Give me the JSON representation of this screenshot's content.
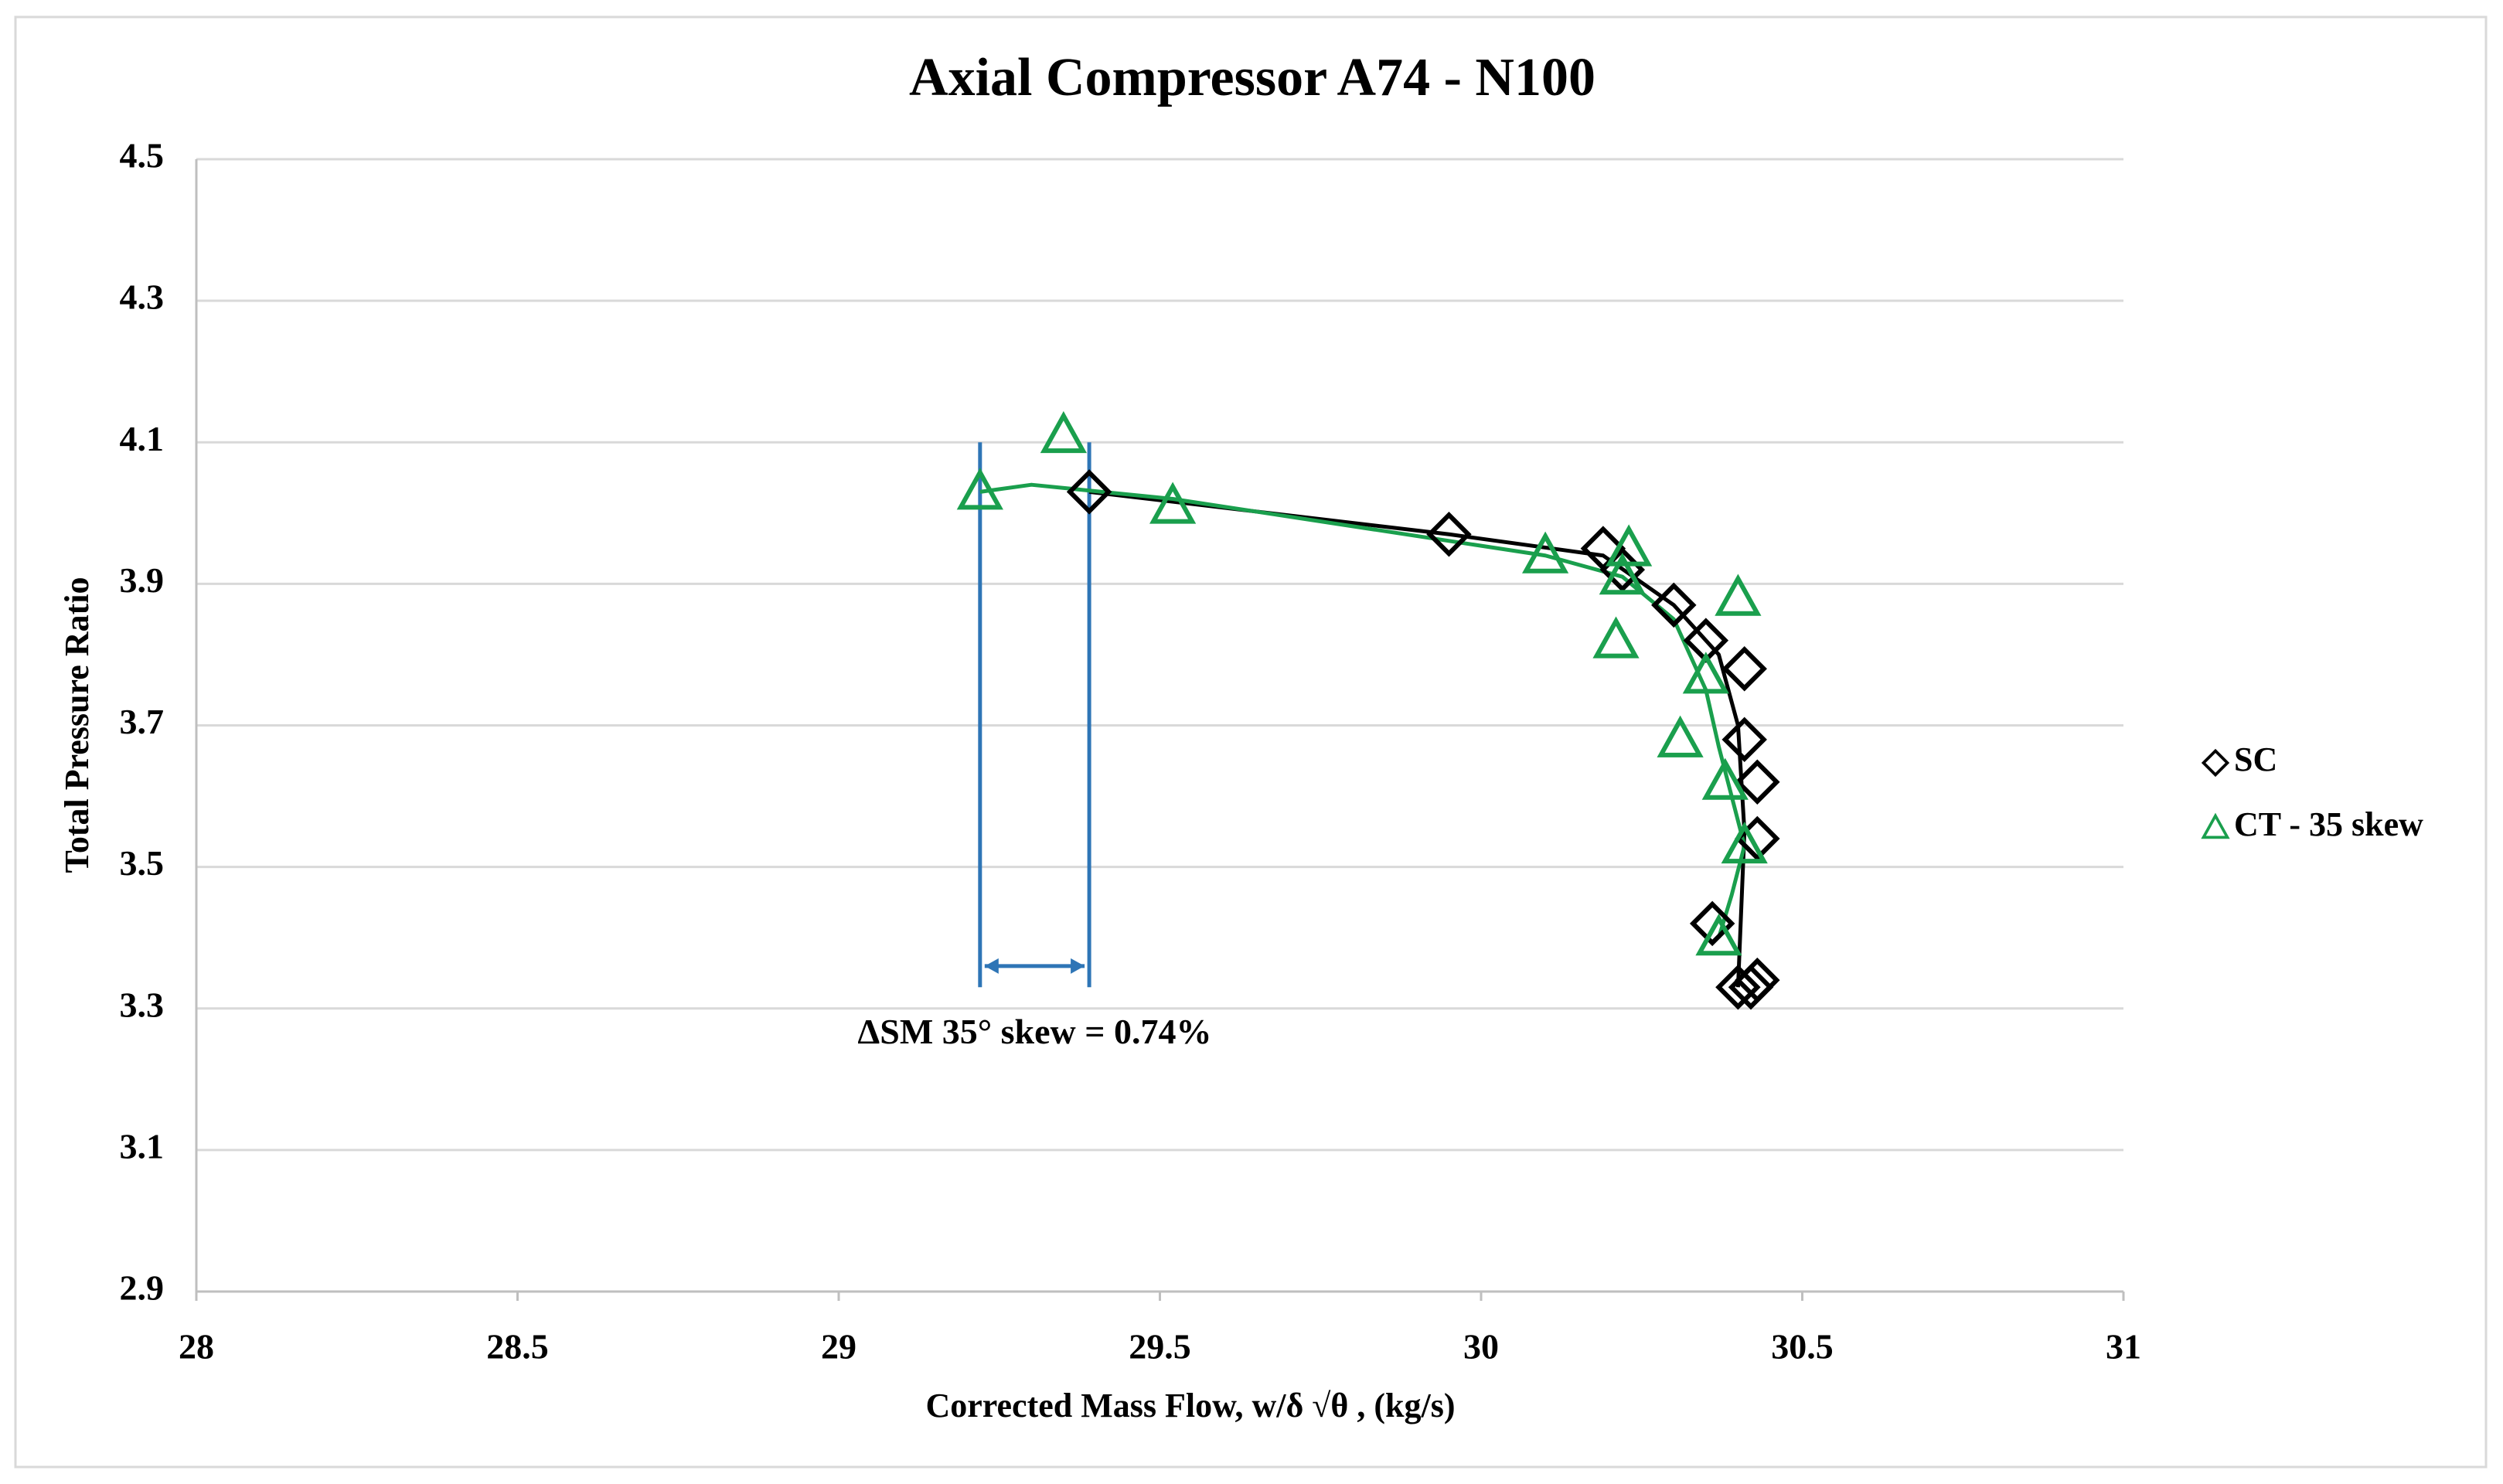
{
  "chart_data": {
    "type": "scatter",
    "title": "Axial Compressor A74 - N100",
    "x_label": "Corrected Mass Flow, w/δ √θ , (kg/s)",
    "y_label": "Total Pressure Ratio",
    "xlim": [
      28,
      31
    ],
    "xticks": [
      28,
      28.5,
      29,
      29.5,
      30,
      30.5,
      31
    ],
    "ylim": [
      2.9,
      4.5
    ],
    "yticks": [
      2.9,
      3.1,
      3.3,
      3.5,
      3.7,
      3.9,
      4.1,
      4.3,
      4.5
    ],
    "grid": true,
    "legend": "right",
    "series": [
      {
        "name": "SC",
        "color": "#000000",
        "marker": "diamond",
        "x": [
          29.39,
          29.95,
          30.19,
          30.22,
          30.3,
          30.35,
          30.41,
          30.41,
          30.43,
          30.43,
          30.36,
          30.4,
          30.42,
          30.43
        ],
        "values": [
          4.03,
          3.97,
          3.95,
          3.92,
          3.87,
          3.82,
          3.78,
          3.68,
          3.62,
          3.54,
          3.42,
          3.33,
          3.33,
          3.34
        ],
        "fit_x": [
          29.39,
          29.95,
          30.19,
          30.3,
          30.37,
          30.4,
          30.41,
          30.4
        ],
        "fit_y": [
          4.03,
          3.97,
          3.94,
          3.87,
          3.8,
          3.7,
          3.55,
          3.33
        ]
      },
      {
        "name": "CT - 35 skew",
        "color": "#1a9f4d",
        "marker": "triangle",
        "x": [
          29.22,
          29.35,
          29.52,
          30.1,
          30.23,
          30.22,
          30.21,
          30.4,
          30.35,
          30.31,
          30.38,
          30.41,
          30.37
        ],
        "values": [
          4.03,
          4.11,
          4.01,
          3.94,
          3.95,
          3.91,
          3.82,
          3.88,
          3.77,
          3.68,
          3.62,
          3.53,
          3.4
        ],
        "fit_x": [
          29.22,
          29.3,
          29.52,
          30.1,
          30.22,
          30.3,
          30.35,
          30.37,
          30.39,
          30.41,
          30.39,
          30.37
        ],
        "fit_y": [
          4.03,
          4.04,
          4.02,
          3.94,
          3.91,
          3.85,
          3.75,
          3.67,
          3.6,
          3.53,
          3.46,
          3.4
        ]
      }
    ],
    "annotation": {
      "text": "ΔSM 35° skew = 0.74%",
      "color": "#2e75b6",
      "x": [
        29.22,
        29.39
      ],
      "y_range": [
        4.1,
        3.33
      ],
      "arrow_y": 3.36
    }
  }
}
